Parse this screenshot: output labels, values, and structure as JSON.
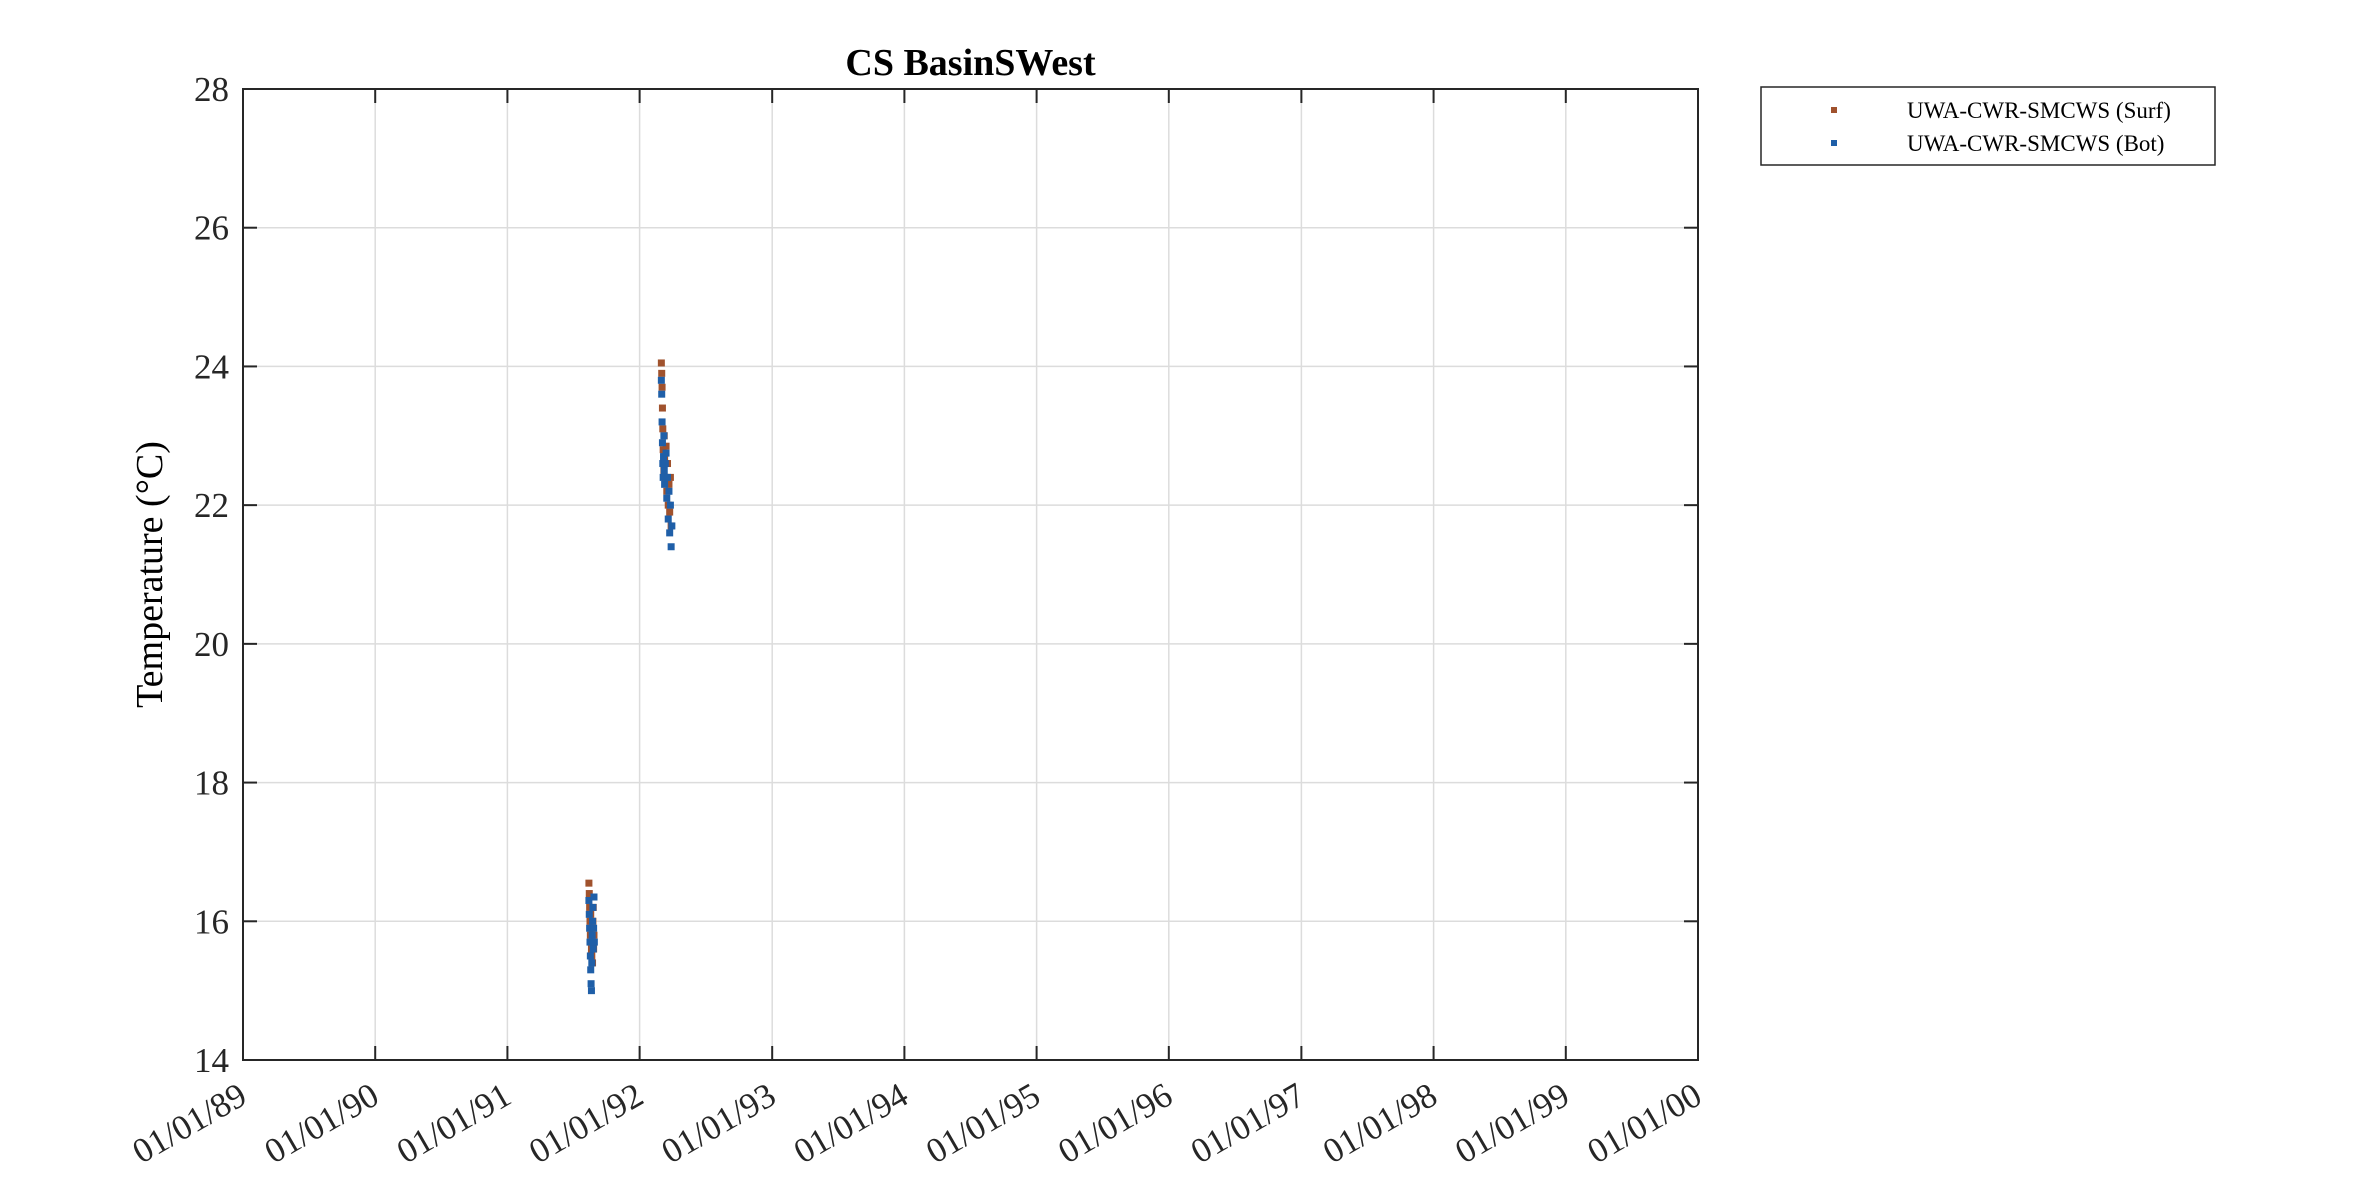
{
  "chart_data": {
    "type": "scatter",
    "title": "CS BasinSWest",
    "xlabel": "",
    "ylabel": "Temperature (°C)",
    "xlim": [
      "1989-01-01",
      "2000-01-01"
    ],
    "ylim": [
      14,
      28
    ],
    "x_ticks": [
      "1989-01-01",
      "1990-01-01",
      "1991-01-01",
      "1992-01-01",
      "1993-01-01",
      "1994-01-01",
      "1995-01-01",
      "1996-01-01",
      "1997-01-01",
      "1998-01-01",
      "1999-01-01",
      "2000-01-01"
    ],
    "x_tick_labels": [
      "01/01/89",
      "01/01/90",
      "01/01/91",
      "01/01/92",
      "01/01/93",
      "01/01/94",
      "01/01/95",
      "01/01/96",
      "01/01/97",
      "01/01/98",
      "01/01/99",
      "01/01/00"
    ],
    "y_ticks": [
      14,
      16,
      18,
      20,
      22,
      24,
      26,
      28
    ],
    "y_tick_labels": [
      "14",
      "16",
      "18",
      "20",
      "22",
      "24",
      "26",
      "28"
    ],
    "grid": true,
    "legend_position": "outside-top-right",
    "series": [
      {
        "name": "UWA-CWR-SMCWS (Surf)",
        "color": "#a0522d",
        "points": [
          [
            "1991-08-14",
            16.55
          ],
          [
            "1991-08-15",
            16.4
          ],
          [
            "1991-08-16",
            16.2
          ],
          [
            "1991-08-17",
            16.0
          ],
          [
            "1991-08-18",
            15.8
          ],
          [
            "1991-08-19",
            16.1
          ],
          [
            "1991-08-20",
            15.9
          ],
          [
            "1991-08-21",
            15.6
          ],
          [
            "1991-08-22",
            15.5
          ],
          [
            "1991-08-23",
            15.7
          ],
          [
            "1991-08-24",
            15.4
          ],
          [
            "1991-08-25",
            16.0
          ],
          [
            "1991-08-26",
            16.2
          ],
          [
            "1991-08-27",
            15.6
          ],
          [
            "1991-08-28",
            15.8
          ],
          [
            "1992-03-01",
            24.05
          ],
          [
            "1992-03-02",
            23.9
          ],
          [
            "1992-03-03",
            23.7
          ],
          [
            "1992-03-04",
            23.4
          ],
          [
            "1992-03-05",
            23.1
          ],
          [
            "1992-03-06",
            22.8
          ],
          [
            "1992-03-07",
            22.6
          ],
          [
            "1992-03-08",
            22.5
          ],
          [
            "1992-03-09",
            23.0
          ],
          [
            "1992-03-10",
            22.7
          ],
          [
            "1992-03-12",
            22.4
          ],
          [
            "1992-03-14",
            22.85
          ],
          [
            "1992-03-16",
            22.2
          ],
          [
            "1992-03-18",
            22.6
          ],
          [
            "1992-03-20",
            22.0
          ],
          [
            "1992-03-22",
            22.3
          ],
          [
            "1992-03-24",
            21.9
          ],
          [
            "1992-03-26",
            22.4
          ],
          [
            "1992-03-28",
            21.7
          ]
        ]
      },
      {
        "name": "UWA-CWR-SMCWS (Bot)",
        "color": "#1f5fa8",
        "points": [
          [
            "1991-08-14",
            16.3
          ],
          [
            "1991-08-15",
            16.1
          ],
          [
            "1991-08-16",
            15.9
          ],
          [
            "1991-08-17",
            15.7
          ],
          [
            "1991-08-18",
            15.5
          ],
          [
            "1991-08-19",
            15.3
          ],
          [
            "1991-08-20",
            15.1
          ],
          [
            "1991-08-21",
            15.0
          ],
          [
            "1991-08-22",
            15.4
          ],
          [
            "1991-08-23",
            15.8
          ],
          [
            "1991-08-24",
            16.0
          ],
          [
            "1991-08-25",
            16.2
          ],
          [
            "1991-08-26",
            15.6
          ],
          [
            "1991-08-27",
            15.9
          ],
          [
            "1991-08-28",
            16.35
          ],
          [
            "1991-08-29",
            15.7
          ],
          [
            "1992-03-01",
            23.8
          ],
          [
            "1992-03-02",
            23.6
          ],
          [
            "1992-03-03",
            23.2
          ],
          [
            "1992-03-04",
            22.9
          ],
          [
            "1992-03-05",
            22.6
          ],
          [
            "1992-03-06",
            22.4
          ],
          [
            "1992-03-07",
            22.7
          ],
          [
            "1992-03-08",
            23.0
          ],
          [
            "1992-03-09",
            22.5
          ],
          [
            "1992-03-10",
            22.3
          ],
          [
            "1992-03-12",
            22.6
          ],
          [
            "1992-03-14",
            22.75
          ],
          [
            "1992-03-16",
            22.1
          ],
          [
            "1992-03-18",
            22.4
          ],
          [
            "1992-03-20",
            21.8
          ],
          [
            "1992-03-22",
            22.2
          ],
          [
            "1992-03-24",
            21.6
          ],
          [
            "1992-03-26",
            22.0
          ],
          [
            "1992-03-28",
            21.4
          ],
          [
            "1992-03-30",
            21.7
          ]
        ]
      }
    ]
  }
}
